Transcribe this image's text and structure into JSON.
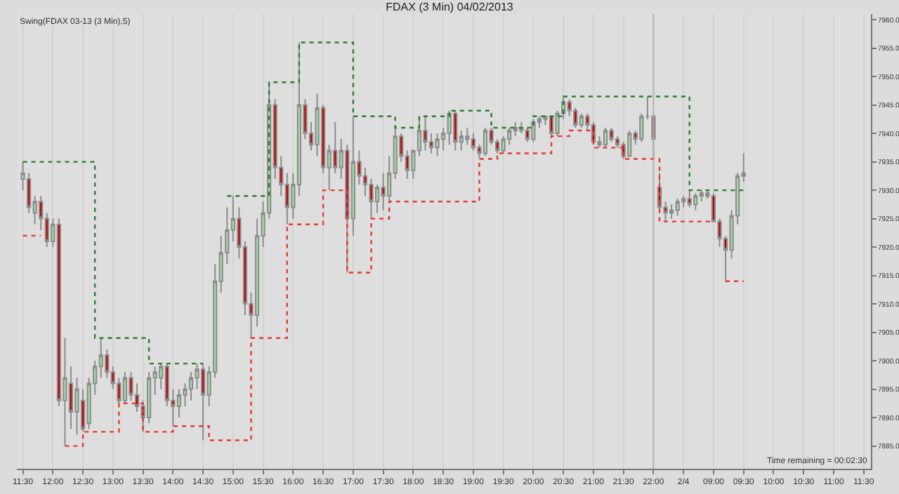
{
  "chart_data": {
    "type": "candlestick",
    "title": "FDAX (3 Min) 04/02/2013",
    "categories": [
      "11:30",
      null,
      null,
      null,
      null,
      "12:00",
      null,
      null,
      null,
      null,
      "12:30",
      null,
      null,
      null,
      null,
      "13:00",
      null,
      null,
      null,
      null,
      "13:30",
      null,
      null,
      null,
      null,
      "14:00",
      null,
      null,
      null,
      null,
      "14:30",
      null,
      null,
      null,
      null,
      "15:00",
      null,
      null,
      null,
      null,
      "15:30",
      null,
      null,
      null,
      null,
      "16:00",
      null,
      null,
      null,
      null,
      "16:30",
      null,
      null,
      null,
      null,
      "17:00",
      null,
      null,
      null,
      null,
      "17:30",
      null,
      null,
      null,
      null,
      "18:00",
      null,
      null,
      null,
      null,
      "18:30",
      null,
      null,
      null,
      null,
      "19:00",
      null,
      null,
      null,
      null,
      "19:30",
      null,
      null,
      null,
      null,
      "20:00",
      null,
      null,
      null,
      null,
      "20:30",
      null,
      null,
      null,
      null,
      "21:00",
      null,
      null,
      null,
      null,
      "21:30",
      null,
      null,
      null,
      null,
      "22:00",
      null,
      null,
      null,
      null,
      "2/4",
      null,
      null,
      null,
      null,
      "09:00",
      null,
      null,
      null,
      null,
      "09:30",
      null,
      null,
      null,
      null,
      "10:00",
      null,
      null,
      null,
      null,
      "10:30",
      null,
      null,
      null,
      null,
      "11:00",
      null,
      null,
      null,
      null,
      "11:30"
    ],
    "ohlc": [
      [
        7932,
        7935,
        7930,
        7933
      ],
      [
        7932,
        7933,
        7926,
        7927
      ],
      [
        7926,
        7929,
        7924,
        7928
      ],
      [
        7928,
        7929,
        7923,
        7925
      ],
      [
        7925,
        7926,
        7920,
        7921
      ],
      [
        7921,
        7925,
        7920,
        7924
      ],
      [
        7924,
        7925,
        7892,
        7893
      ],
      [
        7893,
        7904,
        7885,
        7897
      ],
      [
        7896,
        7899,
        7888,
        7891
      ],
      [
        7891,
        7897,
        7887,
        7895
      ],
      [
        7893,
        7895,
        7887.5,
        7888
      ],
      [
        7889,
        7897,
        7888,
        7896
      ],
      [
        7896,
        7900,
        7894,
        7899
      ],
      [
        7899,
        7904,
        7897,
        7901
      ],
      [
        7901,
        7902,
        7897,
        7898
      ],
      [
        7898,
        7899,
        7895,
        7896
      ],
      [
        7896,
        7897,
        7892.5,
        7893
      ],
      [
        7893,
        7898,
        7892.5,
        7897
      ],
      [
        7897,
        7898,
        7893,
        7894
      ],
      [
        7894,
        7896,
        7891,
        7892
      ],
      [
        7892,
        7893,
        7887.5,
        7890
      ],
      [
        7890,
        7898,
        7889,
        7897
      ],
      [
        7897,
        7899,
        7894,
        7898
      ],
      [
        7897,
        7899.5,
        7895,
        7899
      ],
      [
        7899,
        7899.5,
        7892,
        7893
      ],
      [
        7893,
        7895,
        7888.5,
        7892
      ],
      [
        7892,
        7895,
        7890,
        7894
      ],
      [
        7894,
        7896,
        7892,
        7895
      ],
      [
        7895,
        7898,
        7893,
        7897
      ],
      [
        7897,
        7899.5,
        7895,
        7898.5
      ],
      [
        7898.5,
        7899.5,
        7886,
        7894
      ],
      [
        7894,
        7899,
        7892,
        7898
      ],
      [
        7898,
        7917,
        7897,
        7914
      ],
      [
        7914,
        7922,
        7912,
        7919
      ],
      [
        7919,
        7927,
        7917,
        7923
      ],
      [
        7923,
        7929,
        7921,
        7925
      ],
      [
        7925,
        7927,
        7918,
        7920
      ],
      [
        7920,
        7921,
        7908,
        7910
      ],
      [
        7910,
        7912,
        7904,
        7908
      ],
      [
        7908,
        7925,
        7906,
        7922
      ],
      [
        7922,
        7928,
        7920,
        7926
      ],
      [
        7926,
        7949,
        7925,
        7945
      ],
      [
        7945,
        7946,
        7932,
        7934
      ],
      [
        7934,
        7936,
        7929,
        7931
      ],
      [
        7931,
        7933,
        7924,
        7927
      ],
      [
        7927,
        7933,
        7925,
        7931
      ],
      [
        7931,
        7956,
        7929,
        7945
      ],
      [
        7945,
        7946,
        7939,
        7940
      ],
      [
        7940,
        7942,
        7937,
        7938
      ],
      [
        7938,
        7947,
        7936,
        7944.5
      ],
      [
        7944.5,
        7945,
        7933,
        7934
      ],
      [
        7934,
        7938,
        7930,
        7937
      ],
      [
        7937,
        7942,
        7933,
        7934
      ],
      [
        7934,
        7939,
        7932,
        7937
      ],
      [
        7937,
        7938,
        7915.5,
        7925
      ],
      [
        7925,
        7943,
        7922,
        7935
      ],
      [
        7935,
        7937,
        7931,
        7932.5
      ],
      [
        7932.5,
        7934,
        7929,
        7931
      ],
      [
        7931,
        7932,
        7925,
        7928
      ],
      [
        7928,
        7931,
        7926,
        7930.5
      ],
      [
        7930.5,
        7933,
        7926.5,
        7929
      ],
      [
        7929,
        7936,
        7928,
        7933
      ],
      [
        7933,
        7941,
        7932,
        7939.5
      ],
      [
        7939.5,
        7940,
        7935,
        7936
      ],
      [
        7936,
        7937,
        7932,
        7933.5
      ],
      [
        7933.5,
        7937,
        7932,
        7937
      ],
      [
        7937,
        7943,
        7936,
        7940.5
      ],
      [
        7940.5,
        7943,
        7937,
        7938.5
      ],
      [
        7938.5,
        7940,
        7936.5,
        7937.5
      ],
      [
        7937.5,
        7940,
        7936,
        7939
      ],
      [
        7939,
        7941,
        7937,
        7940
      ],
      [
        7940,
        7944,
        7938,
        7943.5
      ],
      [
        7943.5,
        7944,
        7937,
        7938.5
      ],
      [
        7938.5,
        7940.5,
        7937,
        7939.5
      ],
      [
        7939.5,
        7941,
        7938,
        7939
      ],
      [
        7939,
        7940,
        7937,
        7937.5
      ],
      [
        7937.5,
        7938,
        7935.5,
        7936.5
      ],
      [
        7936.5,
        7941,
        7936,
        7940.5
      ],
      [
        7940.5,
        7941,
        7938,
        7938.5
      ],
      [
        7938.5,
        7939,
        7936.5,
        7937
      ],
      [
        7937,
        7939.5,
        7936.5,
        7939
      ],
      [
        7939,
        7941,
        7938,
        7940.5
      ],
      [
        7940.5,
        7942,
        7939.5,
        7941
      ],
      [
        7941,
        7942,
        7940,
        7940.5
      ],
      [
        7940.5,
        7941,
        7938.5,
        7939
      ],
      [
        7939,
        7942.5,
        7938.5,
        7942
      ],
      [
        7942,
        7943,
        7941,
        7942.5
      ],
      [
        7942.5,
        7943,
        7941.5,
        7943
      ],
      [
        7943,
        7943,
        7939.5,
        7940
      ],
      [
        7940,
        7944,
        7939.5,
        7943.5
      ],
      [
        7943.5,
        7946.5,
        7942.5,
        7945.5
      ],
      [
        7945.5,
        7946,
        7943,
        7944
      ],
      [
        7944,
        7944.5,
        7941,
        7941.5
      ],
      [
        7941.5,
        7943.5,
        7941,
        7943
      ],
      [
        7943,
        7943.5,
        7940.5,
        7941.5
      ],
      [
        7941.5,
        7942,
        7938,
        7938.5
      ],
      [
        7938.5,
        7939.5,
        7937.5,
        7938
      ],
      [
        7938,
        7941,
        7937.5,
        7940.5
      ],
      [
        7940.5,
        7941,
        7938.5,
        7939
      ],
      [
        7939,
        7939.5,
        7937.5,
        7938
      ],
      [
        7938,
        7938.5,
        7935.5,
        7936
      ],
      [
        7936,
        7940.5,
        7936,
        7940
      ],
      [
        7940,
        7940.5,
        7938,
        7939
      ],
      [
        7939,
        7943.5,
        7938.5,
        7943
      ],
      [
        7943,
        7946.5,
        7942.5,
        7943
      ],
      [
        7943,
        7943.5,
        7935.5,
        7939
      ],
      [
        7930.5,
        7933,
        7926,
        7927
      ],
      [
        7927,
        7928,
        7924.5,
        7926
      ],
      [
        7926,
        7927.5,
        7925,
        7926.5
      ],
      [
        7926.5,
        7928.5,
        7925.5,
        7928
      ],
      [
        7928,
        7929,
        7927,
        7928.5
      ],
      [
        7928.5,
        7930,
        7927,
        7927.5
      ],
      [
        7927.5,
        7929.5,
        7926.5,
        7929
      ],
      [
        7929,
        7930,
        7928,
        7929.5
      ],
      [
        7929.5,
        7930,
        7928.5,
        7929
      ],
      [
        7929,
        7929.5,
        7924.5,
        7924.5
      ],
      [
        7924.5,
        7925,
        7920,
        7921.5
      ],
      [
        7921.5,
        7922,
        7914,
        7919.5
      ],
      [
        7919.5,
        7926.5,
        7918,
        7925.5
      ],
      [
        7925.5,
        7933,
        7924,
        7932.5
      ],
      [
        7932.5,
        7936.5,
        7931.5,
        7933
      ],
      null,
      null,
      null,
      null,
      null,
      null,
      null,
      null,
      null,
      null,
      null,
      null,
      null,
      null,
      null,
      null,
      null,
      null,
      null,
      null
    ],
    "series": [
      {
        "type": "step",
        "color": "#2e7d32",
        "line_style": "dotted",
        "values": [
          7935,
          7935,
          7935,
          7935,
          7935,
          7935,
          7935,
          7935,
          7935,
          7935,
          7935,
          7935,
          7904,
          7904,
          7904,
          7904,
          7904,
          7904,
          7904,
          7904,
          7904,
          7899.5,
          7899.5,
          7899.5,
          7899.5,
          7899.5,
          7899.5,
          7899.5,
          7899.5,
          7899.5,
          7899.5,
          null,
          null,
          null,
          7929,
          7929,
          7929,
          7929,
          7929,
          7929,
          7929,
          7949,
          7949,
          7949,
          7949,
          7949,
          7956,
          7956,
          7956,
          7956,
          7956,
          7956,
          7956,
          7956,
          7956,
          7943,
          7943,
          7943,
          7943,
          7943,
          7943,
          7943,
          7941,
          7941,
          7941,
          7941,
          7943,
          7943,
          7943,
          7943,
          7943,
          7944,
          7944,
          7944,
          7944,
          7944,
          7944,
          7944,
          7941,
          7941,
          7941,
          7941,
          7941,
          7941,
          7941,
          7943,
          7943,
          7943,
          7943,
          7943,
          7946.5,
          7946.5,
          7946.5,
          7946.5,
          7946.5,
          7946.5,
          7946.5,
          7946.5,
          7946.5,
          7946.5,
          7946.5,
          7946.5,
          7946.5,
          7946.5,
          7946.5,
          7946.5,
          7946.5,
          7946.5,
          7946.5,
          7946.5,
          7946.5,
          7930,
          7930,
          7930,
          7930,
          7930,
          7930,
          7930,
          7930,
          7930,
          7930,
          null,
          null,
          null,
          null,
          null,
          null,
          null,
          null,
          null,
          null,
          null,
          null,
          null,
          null,
          null,
          null,
          null,
          null,
          null,
          null
        ]
      },
      {
        "type": "step",
        "color": "#e53935",
        "line_style": "dotted",
        "values": [
          7922,
          7922,
          7922,
          7922,
          null,
          null,
          null,
          7885,
          7885,
          7885,
          7887.5,
          7887.5,
          7887.5,
          7887.5,
          7887.5,
          7887.5,
          7892.5,
          7892.5,
          7892.5,
          7892.5,
          7887.5,
          7887.5,
          7887.5,
          7887.5,
          7887.5,
          7888.5,
          7888.5,
          7888.5,
          7888.5,
          7888.5,
          7888.5,
          7886,
          7886,
          7886,
          7886,
          7886,
          7886,
          7886,
          7904,
          7904,
          7904,
          7904,
          7904,
          7904,
          7924,
          7924,
          7924,
          7924,
          7924,
          7924,
          7930,
          7930,
          7930,
          7930,
          7915.5,
          7915.5,
          7915.5,
          7915.5,
          7925,
          7925,
          7925,
          7928,
          7928,
          7928,
          7928,
          7928,
          7928,
          7928,
          7928,
          7928,
          7928,
          7928,
          7928,
          7928,
          7928,
          7928,
          7935.5,
          7935.5,
          7935.5,
          7936.5,
          7936.5,
          7936.5,
          7936.5,
          7936.5,
          7936.5,
          7936.5,
          7936.5,
          7936.5,
          7939.5,
          7939.5,
          7939.5,
          7940.5,
          7940.5,
          7940.5,
          7940.5,
          7937.5,
          7937.5,
          7937.5,
          7937.5,
          7937.5,
          7935.5,
          7935.5,
          7935.5,
          7935.5,
          7935.5,
          7935.5,
          7924.5,
          7924.5,
          7924.5,
          7924.5,
          7924.5,
          7924.5,
          7924.5,
          7924.5,
          7924.5,
          7924.5,
          null,
          7914,
          7914,
          7914,
          7914,
          null,
          null,
          null,
          null,
          null,
          null,
          null,
          null,
          null,
          null,
          null,
          null,
          null,
          null,
          null,
          null,
          null,
          null,
          null,
          null
        ]
      }
    ],
    "ylim": [
      7881,
      7961
    ],
    "yticks": [
      {
        "value": 7885,
        "label": "7885.0"
      },
      {
        "value": 7890,
        "label": "7890.0"
      },
      {
        "value": 7895,
        "label": "7895.0"
      },
      {
        "value": 7900,
        "label": "7900.0"
      },
      {
        "value": 7905,
        "label": "7905.0"
      },
      {
        "value": 7910,
        "label": "7910.0"
      },
      {
        "value": 7915,
        "label": "7915.0"
      },
      {
        "value": 7920,
        "label": "7920.0"
      },
      {
        "value": 7925,
        "label": "7925.0"
      },
      {
        "value": 7930,
        "label": "7930.0"
      },
      {
        "value": 7935,
        "label": "7935.0"
      },
      {
        "value": 7940,
        "label": "7940.0"
      },
      {
        "value": 7945,
        "label": "7945.0"
      },
      {
        "value": 7950,
        "label": "7950.0"
      },
      {
        "value": 7955,
        "label": "7955.0"
      },
      {
        "value": 7960,
        "label": "7960.0"
      }
    ],
    "ref_lines": [
      {
        "axis": "x",
        "value": "22:00",
        "color": "#b4b4b4"
      }
    ],
    "annotations": [
      "Swing(FDAX 03-13 (3 Min),5)",
      "Time remaining = 00:02:30"
    ],
    "grid": "x"
  }
}
